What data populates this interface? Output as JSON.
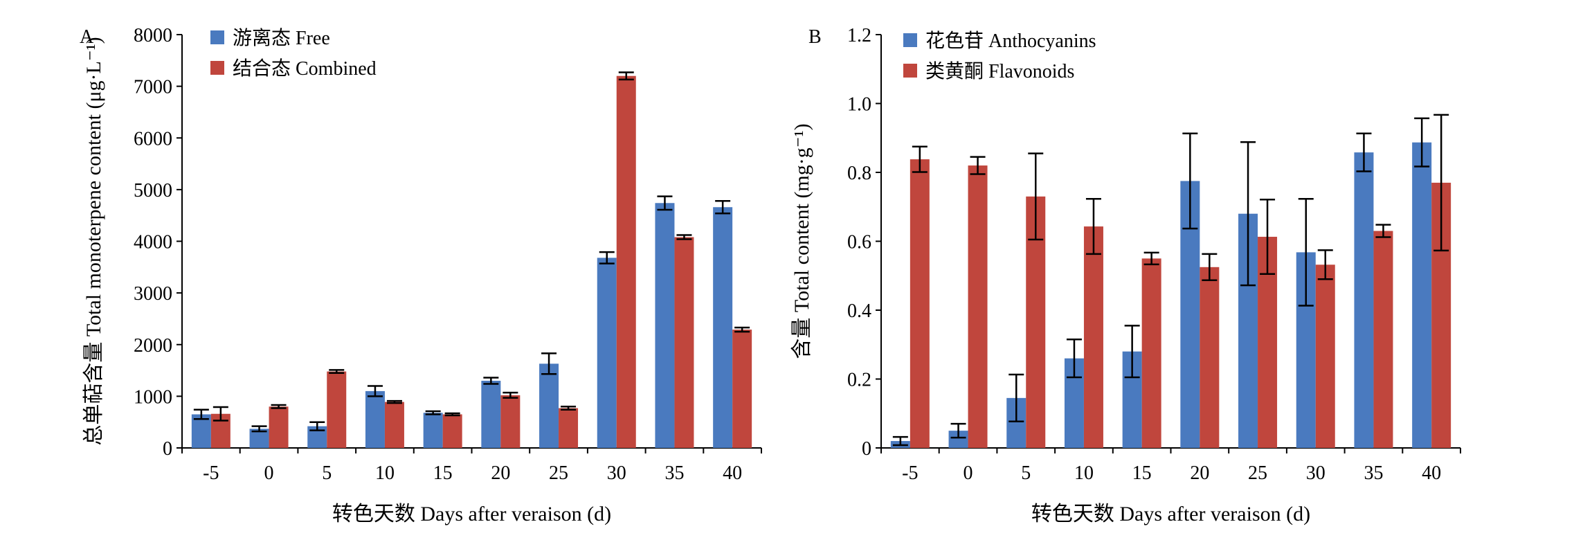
{
  "colors": {
    "blue": "#4a7abf",
    "red": "#c0463d",
    "axis": "#000000",
    "error": "#000000"
  },
  "chart_data": [
    {
      "panel": "A",
      "type": "bar",
      "categories": [
        "-5",
        "0",
        "5",
        "10",
        "15",
        "20",
        "25",
        "30",
        "35",
        "40"
      ],
      "ylabel": "总单萜含量 Total monoterpene content (μg·L⁻¹)",
      "xlabel": "转色天数 Days after veraison (d)",
      "ylim": [
        0,
        8000
      ],
      "yticks": [
        "0",
        "1000",
        "2000",
        "3000",
        "4000",
        "5000",
        "6000",
        "7000",
        "8000"
      ],
      "grid": false,
      "legend_position": "top-left",
      "series": [
        {
          "name": "游离态 Free",
          "color": "blue",
          "values": [
            650,
            370,
            420,
            1100,
            680,
            1300,
            1630,
            3680,
            4740,
            4660
          ],
          "errors": [
            90,
            50,
            80,
            100,
            30,
            60,
            200,
            110,
            130,
            120
          ]
        },
        {
          "name": "结合态 Combined",
          "color": "red",
          "values": [
            660,
            800,
            1480,
            890,
            650,
            1020,
            770,
            7200,
            4080,
            2290
          ],
          "errors": [
            130,
            30,
            30,
            20,
            20,
            50,
            30,
            70,
            40,
            40
          ]
        }
      ]
    },
    {
      "panel": "B",
      "type": "bar",
      "categories": [
        "-5",
        "0",
        "5",
        "10",
        "15",
        "20",
        "25",
        "30",
        "35",
        "40"
      ],
      "ylabel": "含量 Total content (mg·g⁻¹)",
      "xlabel": "转色天数 Days after veraison (d)",
      "ylim": [
        0,
        1.2
      ],
      "yticks": [
        "0",
        "0.2",
        "0.4",
        "0.6",
        "0.8",
        "1.0",
        "1.2"
      ],
      "grid": false,
      "legend_position": "top-left",
      "series": [
        {
          "name": "花色苷 Anthocyanins",
          "color": "blue",
          "values": [
            0.02,
            0.05,
            0.145,
            0.26,
            0.28,
            0.775,
            0.68,
            0.568,
            0.858,
            0.887
          ],
          "errors": [
            0.012,
            0.02,
            0.068,
            0.055,
            0.075,
            0.138,
            0.208,
            0.155,
            0.055,
            0.07
          ]
        },
        {
          "name": "类黄酮 Flavonoids",
          "color": "red",
          "values": [
            0.838,
            0.82,
            0.73,
            0.643,
            0.55,
            0.525,
            0.613,
            0.532,
            0.63,
            0.77
          ],
          "errors": [
            0.037,
            0.025,
            0.125,
            0.08,
            0.017,
            0.038,
            0.108,
            0.042,
            0.018,
            0.197
          ]
        }
      ]
    }
  ]
}
